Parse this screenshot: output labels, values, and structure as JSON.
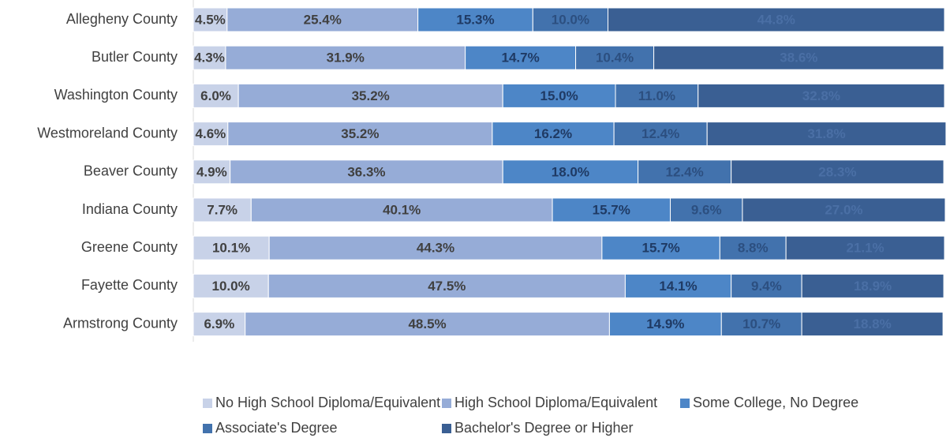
{
  "chart_data": {
    "type": "stacked_bar_horizontal",
    "categories": [
      "Allegheny County",
      "Butler County",
      "Washington County",
      "Westmoreland County",
      "Beaver County",
      "Indiana County",
      "Greene County",
      "Fayette County",
      "Armstrong County"
    ],
    "xlim": [
      0,
      100
    ],
    "series": [
      {
        "name": "No High School Diploma/Equivalent",
        "color": "#c8d2e8",
        "values": [
          4.5,
          4.3,
          6.0,
          4.6,
          4.9,
          7.7,
          10.1,
          10.0,
          6.9
        ],
        "value_labels": [
          "4.5%",
          "4.3%",
          "6.0%",
          "4.6%",
          "4.9%",
          "7.7%",
          "10.1%",
          "10.0%",
          "6.9%"
        ]
      },
      {
        "name": "High School Diploma/Equivalent",
        "color": "#96acd7",
        "values": [
          25.4,
          31.9,
          35.2,
          35.2,
          36.3,
          40.1,
          44.3,
          47.5,
          48.5
        ],
        "value_labels": [
          "25.4%",
          "31.9%",
          "35.2%",
          "35.2%",
          "36.3%",
          "40.1%",
          "44.3%",
          "47.5%",
          "48.5%"
        ]
      },
      {
        "name": "Some College, No Degree",
        "color": "#4d86c7",
        "values": [
          15.3,
          14.7,
          15.0,
          16.2,
          18.0,
          15.7,
          15.7,
          14.1,
          14.9
        ],
        "value_labels": [
          "15.3%",
          "14.7%",
          "15.0%",
          "16.2%",
          "18.0%",
          "15.7%",
          "15.7%",
          "14.1%",
          "14.9%"
        ]
      },
      {
        "name": "Associate's Degree",
        "color": "#4272ad",
        "values": [
          10.0,
          10.4,
          11.0,
          12.4,
          12.4,
          9.6,
          8.8,
          9.4,
          10.7
        ],
        "value_labels": [
          "10.0%",
          "10.4%",
          "11.0%",
          "12.4%",
          "12.4%",
          "9.6%",
          "8.8%",
          "9.4%",
          "10.7%"
        ]
      },
      {
        "name": "Bachelor's Degree or Higher",
        "color": "#3a5f93",
        "values": [
          44.8,
          38.6,
          32.8,
          31.8,
          28.3,
          27.0,
          21.1,
          18.9,
          18.8
        ],
        "value_labels": [
          "44.8%",
          "38.6%",
          "32.8%",
          "31.8%",
          "28.3%",
          "27.0%",
          "21.1%",
          "18.9%",
          "18.8%"
        ]
      }
    ]
  }
}
